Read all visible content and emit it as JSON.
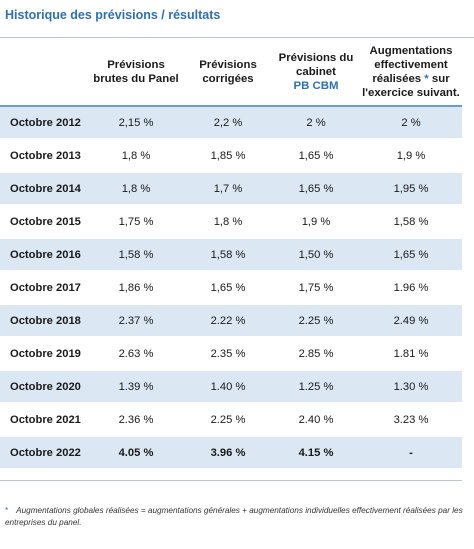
{
  "title": "Historique des prévisions / résultats",
  "table": {
    "headers": {
      "col1": "Prévisions brutes du Panel",
      "col2": "Prévisions corrigées",
      "col3_line": "Prévisions du cabinet",
      "col3_highlight": "PB CBM",
      "col4_before": "Augmentations effectivement réalisées",
      "col4_star": "*",
      "col4_after": "sur l'exercice suivant."
    },
    "rows": [
      {
        "label": "Octobre 2012",
        "v1": "2,15 %",
        "v2": "2,2 %",
        "v3": "2 %",
        "v4": "2 %"
      },
      {
        "label": "Octobre 2013",
        "v1": "1,8 %",
        "v2": "1,85 %",
        "v3": "1,65 %",
        "v4": "1,9 %"
      },
      {
        "label": "Octobre 2014",
        "v1": "1,8 %",
        "v2": "1,7 %",
        "v3": "1,65 %",
        "v4": "1,95 %"
      },
      {
        "label": "Octobre 2015",
        "v1": "1,75 %",
        "v2": "1,8 %",
        "v3": "1,9 %",
        "v4": "1,58 %"
      },
      {
        "label": "Octobre 2016",
        "v1": "1,58 %",
        "v2": "1,58 %",
        "v3": "1,50 %",
        "v4": "1,65 %"
      },
      {
        "label": "Octobre 2017",
        "v1": "1,86 %",
        "v2": "1,65 %",
        "v3": "1,75 %",
        "v4": "1.96 %"
      },
      {
        "label": "Octobre 2018",
        "v1": "2.37 %",
        "v2": "2.22 %",
        "v3": "2.25 %",
        "v4": "2.49 %"
      },
      {
        "label": "Octobre 2019",
        "v1": "2.63 %",
        "v2": "2.35 %",
        "v3": "2.85 %",
        "v4": "1.81 %"
      },
      {
        "label": "Octobre 2020",
        "v1": "1.39 %",
        "v2": "1.40 %",
        "v3": "1.25 %",
        "v4": "1.30 %"
      },
      {
        "label": "Octobre 2021",
        "v1": "2.36 %",
        "v2": "2.25 %",
        "v3": "2.40 %",
        "v4": "3.23 %"
      },
      {
        "label": "Octobre 2022",
        "v1": "4.05 %",
        "v2": "3.96 %",
        "v3": "4.15 %",
        "v4": "-"
      }
    ]
  },
  "footnote": {
    "mark": "*",
    "text": "Augmentations globales réalisées = augmentations générales + augmentations individuelles effectivement réalisées par les entreprises du panel."
  },
  "colors": {
    "accent": "#2f6fb4",
    "row_shade": "#dbe7f3",
    "header_rule": "#6b9bc9"
  }
}
